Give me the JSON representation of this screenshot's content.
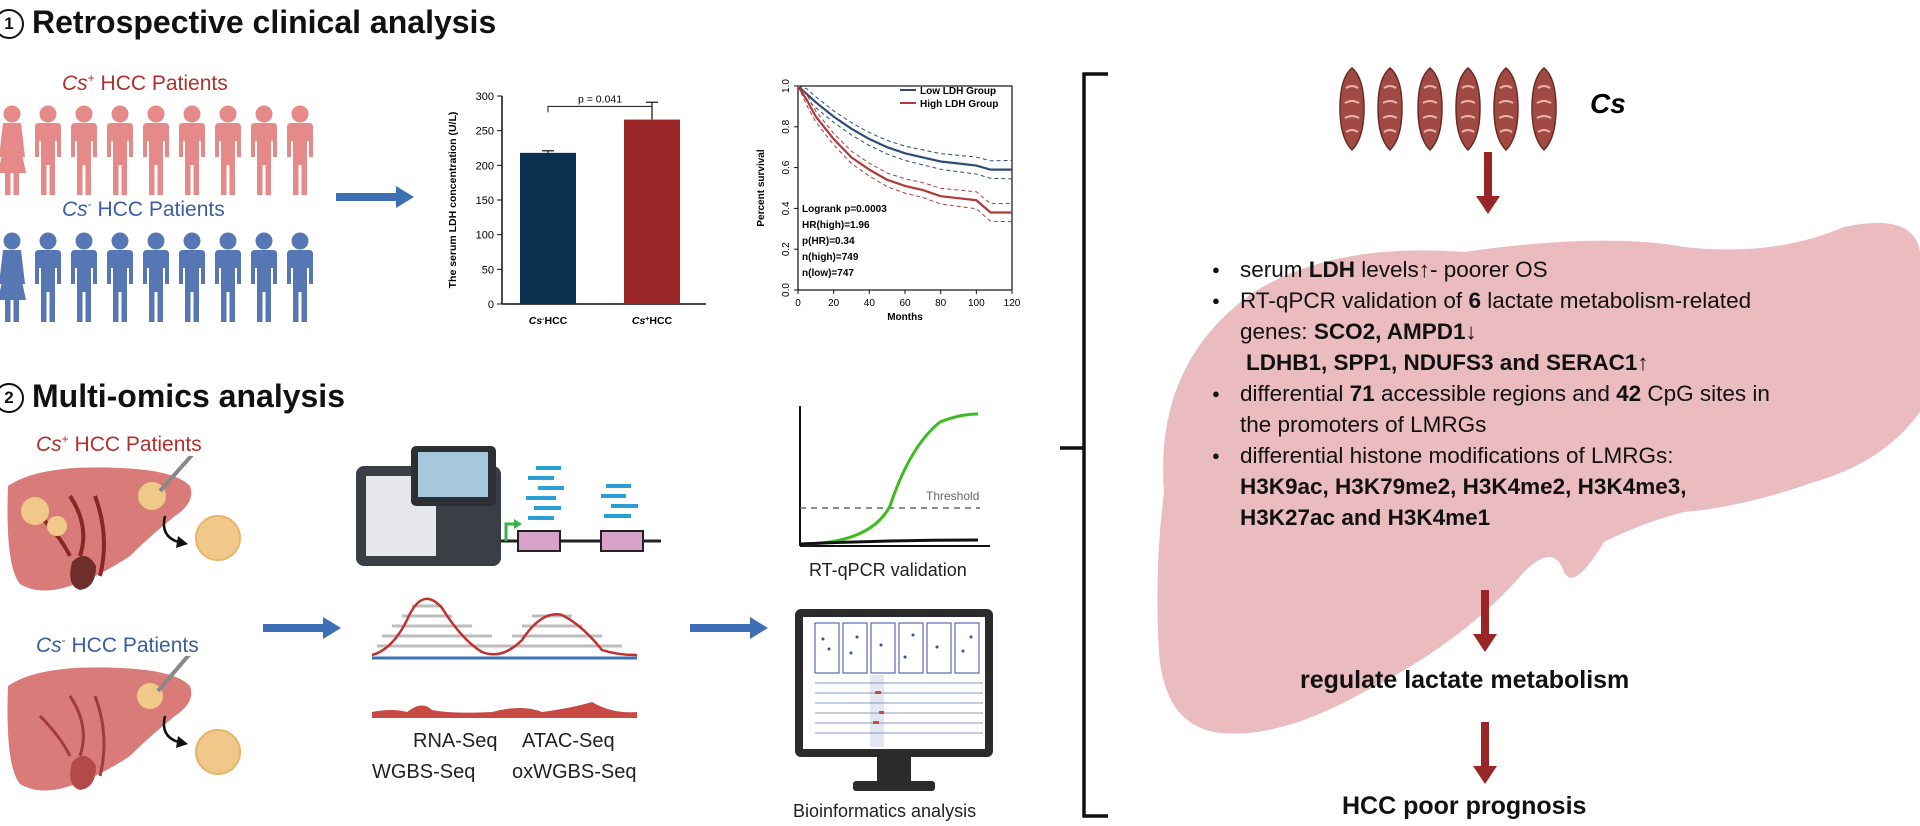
{
  "section1": {
    "number": "1",
    "title": "Retrospective clinical analysis"
  },
  "section2": {
    "number": "2",
    "title": "Multi-omics analysis"
  },
  "groups": {
    "cs_pos_italic": "Cs",
    "cs_pos_sup": "+",
    "cs_pos_rest": " HCC Patients",
    "cs_neg_italic": "Cs",
    "cs_neg_sup": "-",
    "cs_neg_rest": " HCC Patients"
  },
  "bar_chart": {
    "chart_data": {
      "type": "bar",
      "categories": [
        "Cs-HCC",
        "Cs+HCC"
      ],
      "values": [
        218,
        266
      ],
      "errors": [
        3,
        25
      ],
      "colors": [
        "#0b2f4f",
        "#9a2527"
      ],
      "ylabel": "The serum LDH concentration (U/L)",
      "ylim": [
        0,
        300
      ],
      "yticks": [
        0,
        50,
        100,
        150,
        200,
        250,
        300
      ],
      "annotation": "p = 0.041"
    }
  },
  "km_chart": {
    "chart_data": {
      "type": "line",
      "xlabel": "Months",
      "ylabel": "Percent survival",
      "xlim": [
        0,
        120
      ],
      "ylim": [
        0,
        1.0
      ],
      "xticks": [
        0,
        20,
        40,
        60,
        80,
        100,
        120
      ],
      "yticks": [
        "0.0",
        "0.2",
        "0.4",
        "0.6",
        "0.8",
        "1.0"
      ],
      "series": [
        {
          "name": "Low LDH Group",
          "color": "#2f4c78",
          "x": [
            0,
            5,
            10,
            20,
            30,
            40,
            50,
            60,
            70,
            80,
            90,
            100,
            108,
            120
          ],
          "y": [
            1.0,
            0.96,
            0.92,
            0.85,
            0.79,
            0.74,
            0.7,
            0.67,
            0.65,
            0.63,
            0.62,
            0.61,
            0.59,
            0.59
          ]
        },
        {
          "name": "High LDH Group",
          "color": "#b03a3a",
          "x": [
            0,
            5,
            10,
            20,
            30,
            40,
            50,
            60,
            70,
            80,
            90,
            100,
            108,
            120
          ],
          "y": [
            1.0,
            0.93,
            0.85,
            0.74,
            0.65,
            0.59,
            0.54,
            0.51,
            0.49,
            0.46,
            0.45,
            0.44,
            0.38,
            0.38
          ]
        }
      ],
      "stats": [
        "Logrank p=0.0003",
        "HR(high)=1.96",
        "p(HR)=0.34",
        "n(high)=749",
        "n(low)=747"
      ]
    }
  },
  "seq_labels": {
    "rna": "RNA-Seq",
    "atac": "ATAC-Seq",
    "wgbs": "WGBS-Seq",
    "oxwgbs": "oxWGBS-Seq"
  },
  "qpcr": {
    "threshold": "Threshold",
    "caption": "RT-qPCR validation"
  },
  "bioinfo": {
    "caption": "Bioinformatics analysis"
  },
  "cs_label": "Cs",
  "summary": {
    "item1": {
      "a": "serum ",
      "b": "LDH",
      "c": " levels↑- poorer OS"
    },
    "item2": {
      "a": "RT-qPCR validation of ",
      "b": "6",
      "c": " lactate metabolism-related genes: ",
      "d": "SCO2, AMPD1↓",
      "e": "LDHB1, SPP1, NDUFS3 and SERAC1↑"
    },
    "item3": {
      "a": "differential ",
      "b": "71",
      "c": " accessible regions and ",
      "d": "42",
      "e": " CpG sites in the promoters of LMRGs"
    },
    "item4": {
      "a": "differential histone modifications of LMRGs:",
      "b": "H3K9ac, H3K79me2, H3K4me2, H3K4me3, H3K27ac and H3K4me1"
    }
  },
  "outcomes": {
    "first": "regulate lactate metabolism",
    "second": "HCC poor prognosis"
  },
  "colors": {
    "red": "#b2302d",
    "blue": "#3b5ea3",
    "arrow_blue": "#3d6fb6",
    "liver": "#eabcc0",
    "dark_red": "#9a2527"
  }
}
